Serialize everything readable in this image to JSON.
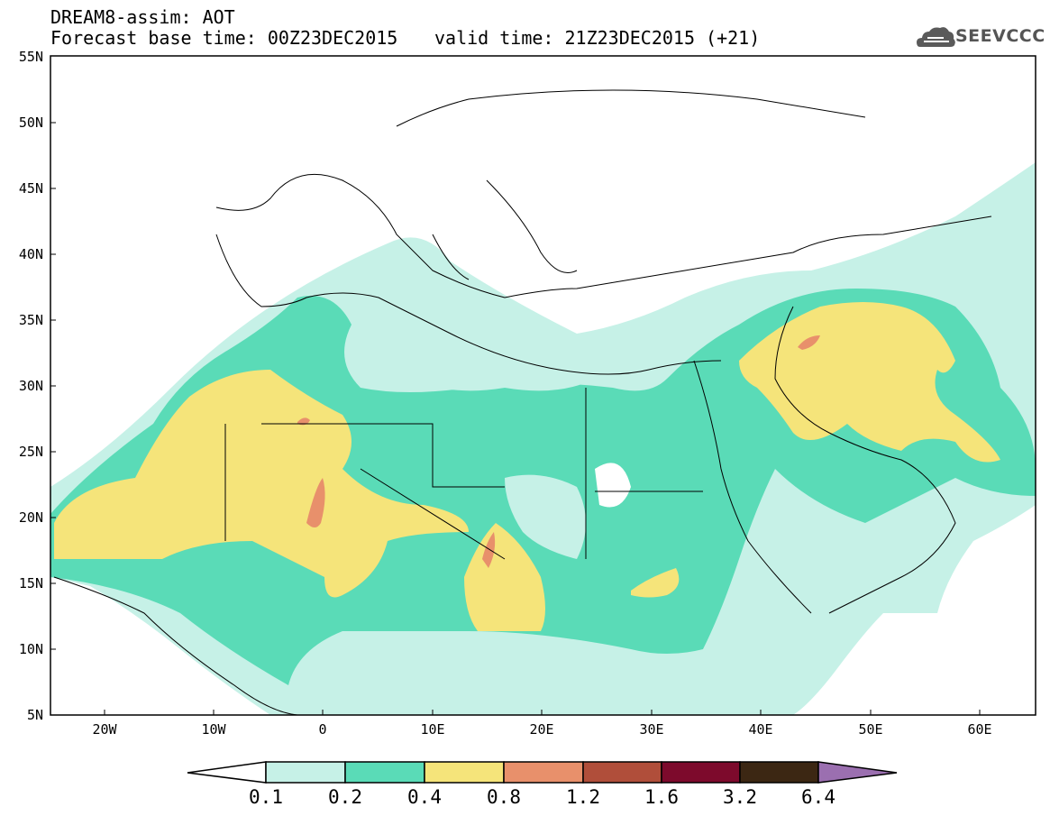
{
  "header": {
    "title": "DREAM8-assim: AOT",
    "base_time": "Forecast base time: 00Z23DEC2015",
    "valid_time": "valid time: 21Z23DEC2015 (+21)",
    "logo": "SEEVCCC"
  },
  "axes": {
    "lat_labels": [
      "55N",
      "50N",
      "45N",
      "40N",
      "35N",
      "30N",
      "25N",
      "20N",
      "15N",
      "10N",
      "5N"
    ],
    "lon_labels": [
      "20W",
      "10W",
      "0",
      "10E",
      "20E",
      "30E",
      "40E",
      "50E",
      "60E"
    ]
  },
  "colorbar": {
    "labels": [
      "0.1",
      "0.2",
      "0.4",
      "0.8",
      "1.2",
      "1.6",
      "3.2",
      "6.4"
    ],
    "colors": [
      "#ffffff",
      "#c6f1e7",
      "#5adbb7",
      "#f5e47a",
      "#e8906b",
      "#b04e3a",
      "#7d0a2c",
      "#3c2713",
      "#9b6fb0"
    ]
  },
  "legend_colors": {
    "low": "#c6f1e7",
    "mid": "#5adbb7",
    "high": "#f5e47a",
    "peak": "#e8906b"
  }
}
